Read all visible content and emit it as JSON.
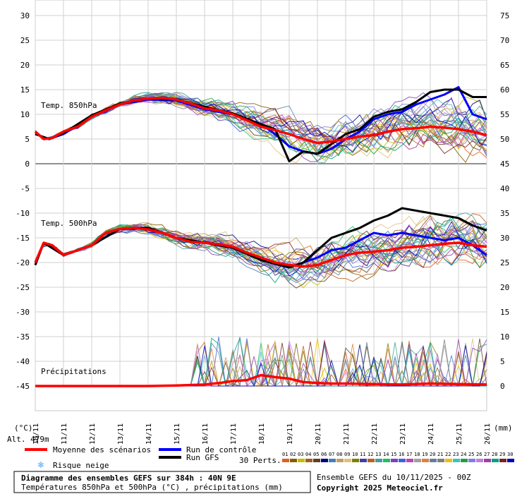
{
  "chart_data": {
    "type": "line",
    "y_left_ticks": [
      30,
      25,
      20,
      15,
      10,
      5,
      0,
      -5,
      -10,
      -15,
      -20,
      -25,
      -30,
      -35,
      -40,
      -45
    ],
    "y_right_ticks": [
      75,
      70,
      65,
      60,
      55,
      50,
      45,
      40,
      35,
      30,
      25,
      20,
      15,
      10,
      5,
      0
    ],
    "y_left_range": [
      -45,
      30
    ],
    "y_left_unit": "(°C)",
    "y_right_unit": "(mm)",
    "x_ticks": [
      "10/11",
      "11/11",
      "12/11",
      "13/11",
      "14/11",
      "15/11",
      "16/11",
      "17/11",
      "18/11",
      "19/11",
      "20/11",
      "21/11",
      "22/11",
      "23/11",
      "24/11",
      "25/11",
      "26/11"
    ],
    "x_range_days": [
      0,
      16
    ],
    "grid": true,
    "panels": {
      "t850_label": "Temp. 850hPa",
      "t500_label": "Temp. 500hPa",
      "precip_label": "Précipitations"
    },
    "series": [
      {
        "name": "Moyenne des scénarios",
        "panel": "t850",
        "color": "#ff0000",
        "x": [
          0,
          0.3,
          0.6,
          1.0,
          1.5,
          2.0,
          2.5,
          3.0,
          3.5,
          4.0,
          4.5,
          5.0,
          5.5,
          6.0,
          6.5,
          7.0,
          7.5,
          8.0,
          8.5,
          9.0,
          9.5,
          10.0,
          10.5,
          11.0,
          11.5,
          12.0,
          12.5,
          13.0,
          13.5,
          14.0,
          14.5,
          15.0,
          15.5,
          16.0
        ],
        "values": [
          6.5,
          5.0,
          5.2,
          6.5,
          7.5,
          9.5,
          10.8,
          12.0,
          12.8,
          13.2,
          13.3,
          13.0,
          12.2,
          11.2,
          10.8,
          10.0,
          8.8,
          7.5,
          6.8,
          6.0,
          5.0,
          4.2,
          4.5,
          5.0,
          5.5,
          5.8,
          6.5,
          7.0,
          7.2,
          7.5,
          7.3,
          7.0,
          6.5,
          5.8
        ]
      },
      {
        "name": "Run de contrôle",
        "panel": "t850",
        "color": "#0000ff",
        "x": [
          0,
          0.5,
          1.0,
          2.0,
          3.0,
          4.0,
          5.0,
          6.0,
          7.0,
          8.0,
          8.5,
          9.0,
          9.5,
          10.0,
          10.5,
          11.0,
          11.5,
          12.0,
          12.5,
          13.0,
          13.5,
          14.0,
          14.5,
          15.0,
          15.5,
          16.0
        ],
        "values": [
          6.0,
          5.0,
          6.0,
          9.5,
          12.0,
          13.0,
          12.8,
          11.0,
          10.0,
          8.0,
          6.0,
          3.5,
          2.5,
          2.0,
          3.0,
          5.0,
          6.5,
          9.0,
          10.0,
          10.5,
          12.0,
          13.0,
          14.0,
          15.5,
          10.0,
          9.0
        ]
      },
      {
        "name": "Run GFS",
        "panel": "t850",
        "color": "#000000",
        "x": [
          0,
          0.5,
          1.0,
          2.0,
          3.0,
          4.0,
          5.0,
          6.0,
          7.0,
          8.0,
          8.5,
          9.0,
          9.5,
          10.0,
          10.5,
          11.0,
          11.5,
          12.0,
          12.5,
          13.0,
          13.5,
          14.0,
          14.5,
          15.0,
          15.5,
          16.0
        ],
        "values": [
          6.0,
          5.0,
          6.2,
          9.8,
          12.2,
          13.2,
          13.0,
          11.5,
          10.2,
          8.0,
          7.0,
          0.5,
          2.5,
          2.0,
          4.0,
          6.0,
          7.0,
          9.5,
          10.5,
          11.0,
          12.5,
          14.5,
          15.0,
          15.0,
          13.5,
          13.5
        ]
      },
      {
        "name": "Moyenne des scénarios",
        "panel": "t500",
        "color": "#ff0000",
        "x": [
          0,
          0.3,
          0.6,
          1.0,
          1.5,
          2.0,
          2.5,
          3.0,
          3.5,
          4.0,
          4.5,
          5.0,
          5.5,
          6.0,
          6.5,
          7.0,
          7.5,
          8.0,
          8.5,
          9.0,
          9.5,
          10.0,
          10.5,
          11.0,
          11.5,
          12.0,
          12.5,
          13.0,
          13.5,
          14.0,
          14.5,
          15.0,
          15.5,
          16.0
        ],
        "values": [
          -20.0,
          -16.0,
          -16.5,
          -18.5,
          -17.5,
          -16.5,
          -14.0,
          -13.2,
          -13.0,
          -13.3,
          -14.0,
          -15.0,
          -15.8,
          -16.0,
          -16.3,
          -16.8,
          -18.0,
          -19.0,
          -20.0,
          -20.5,
          -20.8,
          -20.5,
          -19.5,
          -18.5,
          -18.0,
          -17.8,
          -17.5,
          -17.0,
          -16.8,
          -16.5,
          -16.2,
          -16.0,
          -16.5,
          -16.8
        ]
      },
      {
        "name": "Run de contrôle",
        "panel": "t500",
        "color": "#0000ff",
        "x": [
          0,
          0.3,
          1.0,
          2.0,
          3.0,
          4.0,
          5.0,
          6.0,
          7.0,
          8.0,
          9.0,
          9.5,
          10.0,
          10.5,
          11.0,
          11.5,
          12.0,
          12.5,
          13.0,
          13.5,
          14.0,
          14.5,
          15.0,
          15.5,
          16.0
        ],
        "values": [
          -20.5,
          -16.0,
          -18.5,
          -16.5,
          -13.2,
          -13.0,
          -15.0,
          -16.0,
          -17.0,
          -19.5,
          -21.0,
          -20.0,
          -19.0,
          -17.5,
          -17.0,
          -15.5,
          -14.0,
          -14.5,
          -14.0,
          -14.5,
          -15.0,
          -15.5,
          -15.0,
          -16.5,
          -18.5
        ]
      },
      {
        "name": "Run GFS",
        "panel": "t500",
        "color": "#000000",
        "x": [
          0,
          0.3,
          1.0,
          2.0,
          3.0,
          4.0,
          5.0,
          6.0,
          7.0,
          8.0,
          9.0,
          9.5,
          10.0,
          10.5,
          11.0,
          11.5,
          12.0,
          12.5,
          13.0,
          13.5,
          14.0,
          14.5,
          15.0,
          15.5,
          16.0
        ],
        "values": [
          -20.5,
          -16.0,
          -18.5,
          -16.5,
          -13.2,
          -13.0,
          -15.0,
          -16.0,
          -17.0,
          -19.5,
          -21.0,
          -20.0,
          -17.5,
          -15.0,
          -14.0,
          -13.0,
          -11.5,
          -10.5,
          -9.0,
          -9.5,
          -10.0,
          -10.5,
          -11.0,
          -12.5,
          -13.5
        ]
      },
      {
        "name": "Moyenne des scénarios",
        "panel": "precip",
        "color": "#ff0000",
        "x": [
          0,
          1,
          2,
          3,
          4,
          5,
          6,
          6.5,
          7,
          7.5,
          8,
          8.5,
          9,
          9.5,
          10,
          10.5,
          11,
          12,
          13,
          14,
          15,
          16
        ],
        "values": [
          0,
          0,
          0,
          0,
          0,
          0.1,
          0.3,
          0.6,
          1.0,
          1.2,
          2.2,
          1.8,
          1.5,
          0.8,
          0.6,
          0.5,
          0.5,
          0.4,
          0.3,
          0.5,
          0.4,
          0.3
        ]
      }
    ],
    "legend": {
      "mean": "Moyenne des scénarios",
      "control": "Run de contrôle",
      "gfs": "Run GFS",
      "snow": "Risque neige",
      "perts": "30 Perts.",
      "pert_numbers": [
        "01",
        "02",
        "03",
        "04",
        "05",
        "06",
        "07",
        "08",
        "09",
        "10",
        "11",
        "12",
        "13",
        "14",
        "15",
        "16",
        "17",
        "18",
        "19",
        "20",
        "21",
        "22",
        "23",
        "24",
        "25",
        "26",
        "27",
        "28",
        "29",
        "30"
      ]
    }
  },
  "colors": {
    "mean": "#ff0000",
    "control": "#0000ff",
    "gfs": "#000000",
    "grid": "#d0d0d0",
    "snow": "#4da6ff",
    "perturbations": [
      "#e06020",
      "#806000",
      "#c0c000",
      "#a06020",
      "#604020",
      "#000080",
      "#4080c0",
      "#c0a060",
      "#e0c080",
      "#808000",
      "#4040a0",
      "#c06020",
      "#40a0a0",
      "#20c060",
      "#8040c0",
      "#4060e0",
      "#c040c0",
      "#a0a0a0",
      "#e08040",
      "#6080a0",
      "#808080",
      "#f0c000",
      "#40c0c0",
      "#20a040",
      "#8080e0",
      "#c080e0",
      "#a040a0",
      "#00a080",
      "#802020",
      "#0000c0"
    ]
  },
  "info": {
    "altitude": "Alt. 479m",
    "title": "Diagramme des ensembles GEFS sur 384h : 40N 9E",
    "subtitle": "Températures 850hPa et 500hPa (°C) , précipitations (mm)",
    "ensemble": "Ensemble GEFS du 10/11/2025 - 00Z",
    "copyright": "Copyright 2025 Meteociel.fr"
  }
}
